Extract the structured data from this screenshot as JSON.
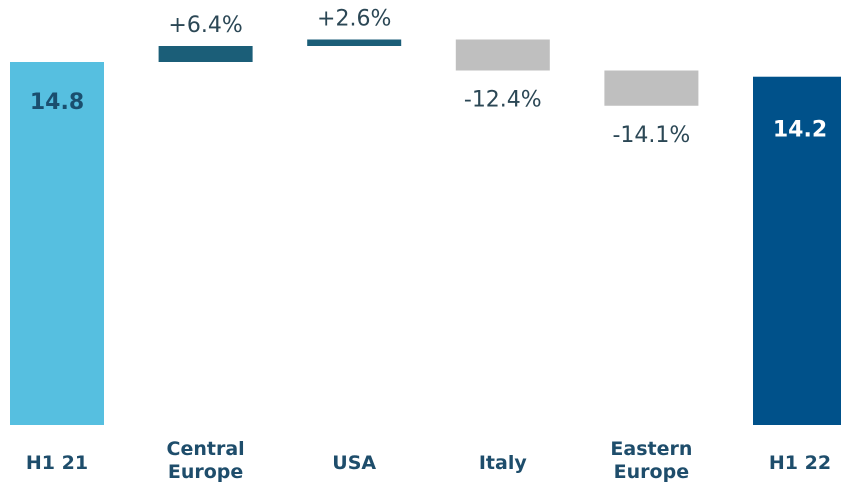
{
  "chart_data": {
    "type": "waterfall",
    "categories": [
      "H1 21",
      "Central Europe",
      "USA",
      "Italy",
      "Eastern Europe",
      "H1 22"
    ],
    "totals": {
      "values": [
        14.8,
        null,
        null,
        null,
        null,
        14.2
      ],
      "colors": [
        "#56bfe0",
        null,
        null,
        null,
        null,
        "#00518a"
      ]
    },
    "changes": {
      "values": [
        null,
        6.4,
        2.6,
        -12.4,
        -14.1,
        null
      ],
      "value_labels": [
        null,
        "+6.4%",
        "+2.6%",
        "-12.4%",
        "-14.1%",
        null
      ],
      "increase_color": "#1b5e78",
      "decrease_color": "#bfbfbf"
    }
  }
}
